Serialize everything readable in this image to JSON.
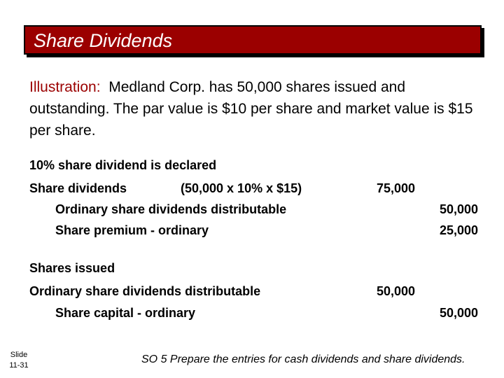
{
  "title": "Share Dividends",
  "illustration": {
    "label": "Illustration:",
    "text": "Medland Corp. has 50,000 shares issued and outstanding.  The par value is $10 per share and market value is $15 per share."
  },
  "declared": {
    "heading": "10% share dividend is declared",
    "debit_account": "Share dividends",
    "calc": "(50,000 x 10% x $15)",
    "debit_amount": "75,000",
    "credit1_account": "Ordinary share dividends distributable",
    "credit1_amount": "50,000",
    "credit2_account": "Share premium - ordinary",
    "credit2_amount": "25,000"
  },
  "issued": {
    "heading": "Shares issued",
    "debit_account": "Ordinary share dividends distributable",
    "debit_amount": "50,000",
    "credit_account": "Share capital - ordinary",
    "credit_amount": "50,000"
  },
  "slide": {
    "label": "Slide",
    "number": "11-31"
  },
  "footer": "SO 5  Prepare the entries for cash dividends and share dividends."
}
